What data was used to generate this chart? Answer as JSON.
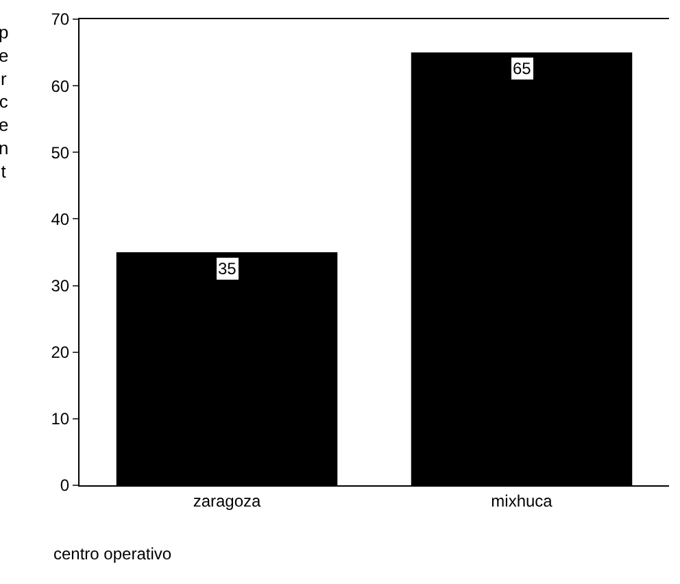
{
  "chart_data": {
    "type": "bar",
    "categories": [
      "zaragoza",
      "mixhuca"
    ],
    "values": [
      35,
      65
    ],
    "color": "#000000",
    "ylim": [
      0,
      70
    ],
    "yticks": [
      0,
      10,
      20,
      30,
      40,
      50,
      60,
      70
    ],
    "ylabel": "percent",
    "xlabel": "centro operativo",
    "data_labels": true,
    "legend": false
  }
}
